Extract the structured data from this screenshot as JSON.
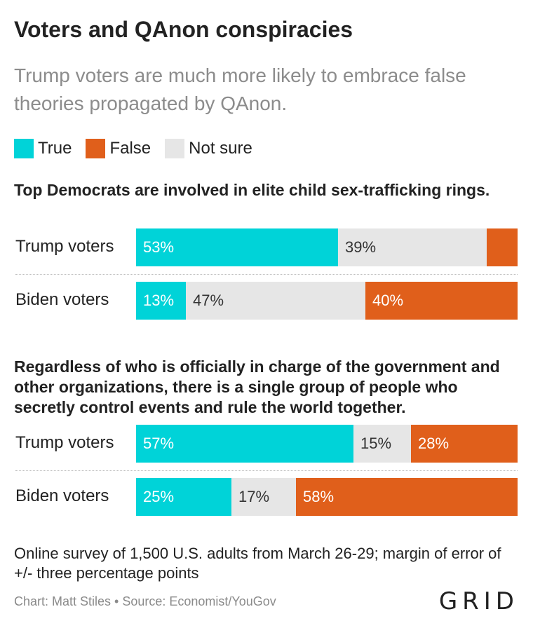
{
  "title": "Voters and QAnon conspiracies",
  "subtitle": "Trump voters are much more likely to embrace false theories propagated by QAnon.",
  "legend": [
    {
      "label": "True",
      "color": "#00d3d8"
    },
    {
      "label": "False",
      "color": "#e05f1b"
    },
    {
      "label": "Not sure",
      "color": "#e6e6e6"
    }
  ],
  "chart_data": {
    "type": "bar",
    "stacked": true,
    "orientation": "horizontal",
    "unit": "%",
    "series_order": [
      "True",
      "Not sure",
      "False"
    ],
    "panels": [
      {
        "question": "Top Democrats are involved in elite child sex-trafficking rings.",
        "rows": [
          {
            "label": "Trump voters",
            "values": {
              "True": 53,
              "Not sure": 39,
              "False": 8
            },
            "labels": {
              "True": "53%",
              "Not sure": "39%",
              "False": ""
            }
          },
          {
            "label": "Biden voters",
            "values": {
              "True": 13,
              "Not sure": 47,
              "False": 40
            },
            "labels": {
              "True": "13%",
              "Not sure": "47%",
              "False": "40%"
            }
          }
        ]
      },
      {
        "question": "Regardless of who is officially in charge of the government and other organizations, there is a single group of people who secretly control events and rule the world together.",
        "rows": [
          {
            "label": "Trump voters",
            "values": {
              "True": 57,
              "Not sure": 15,
              "False": 28
            },
            "labels": {
              "True": "57%",
              "Not sure": "15%",
              "False": "28%"
            }
          },
          {
            "label": "Biden voters",
            "values": {
              "True": 25,
              "Not sure": 17,
              "False": 58
            },
            "labels": {
              "True": "25%",
              "Not sure": "17%",
              "False": "58%"
            }
          }
        ]
      }
    ]
  },
  "note": "Online survey of 1,500 U.S. adults from March 26-29; margin of error of +/- three percentage points",
  "credit": "Chart: Matt Stiles • Source: Economist/YouGov",
  "logo": "GRID"
}
